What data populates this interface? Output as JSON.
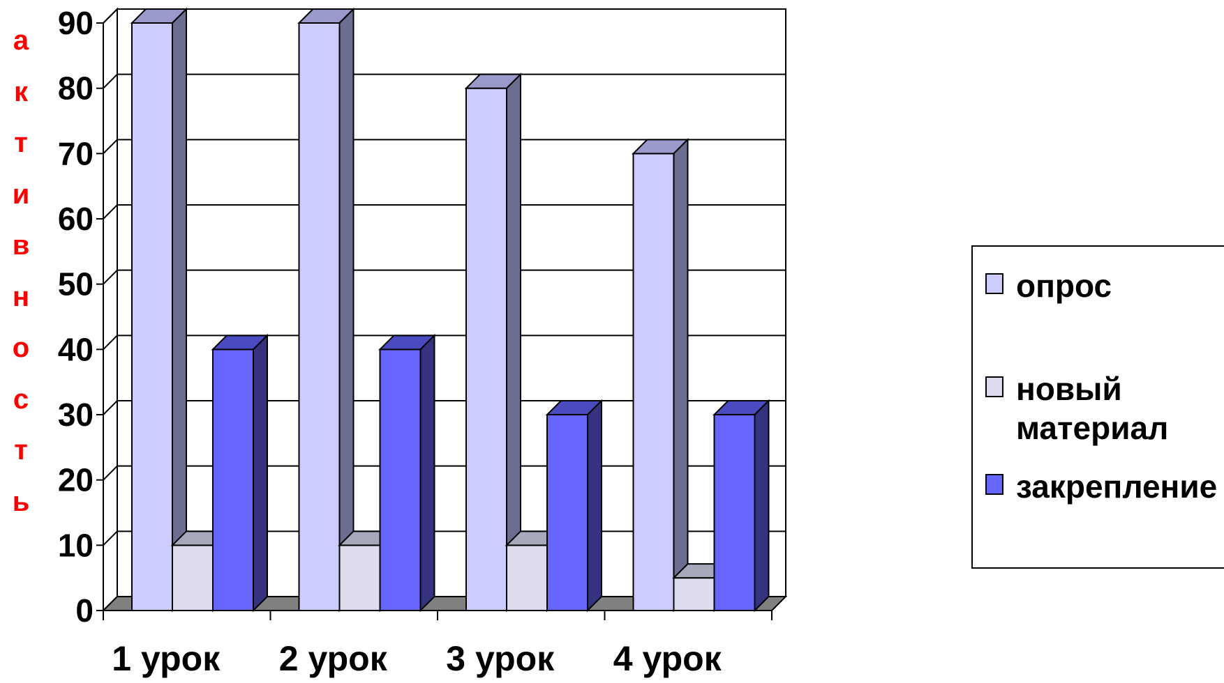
{
  "chart_data": {
    "type": "bar",
    "title": "",
    "xlabel": "",
    "ylabel": "активность",
    "categories": [
      "1 урок",
      "2 урок",
      "3 урок",
      "4 урок"
    ],
    "series": [
      {
        "name": "опрос",
        "values": [
          90,
          90,
          80,
          70
        ],
        "color": "#ccccff",
        "side_color": "#6d6d92",
        "top_color": "#9999cc"
      },
      {
        "name": "новый материал",
        "values": [
          10,
          10,
          10,
          5
        ],
        "color": "#dcdcee",
        "side_color": "#8a8aa0",
        "top_color": "#a8a8bc"
      },
      {
        "name": "закрепление",
        "values": [
          40,
          40,
          30,
          30
        ],
        "color": "#6666ff",
        "side_color": "#333380",
        "top_color": "#4b4bc0"
      }
    ],
    "ylim": [
      0,
      90
    ],
    "yticks": [
      "0",
      "10",
      "20",
      "30",
      "40",
      "50",
      "60",
      "70",
      "80",
      "90"
    ],
    "ylabel_color": "#ff0000",
    "gridlines": true,
    "legend_position": "right",
    "style": "3d"
  }
}
